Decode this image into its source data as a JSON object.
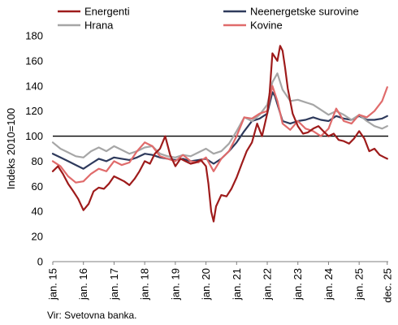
{
  "chart_data": {
    "type": "line",
    "ylabel": "Indeks 2010=100",
    "xlabel": "",
    "source": "Vir: Svetovna banka.",
    "ylim": [
      0,
      180
    ],
    "yticks": [
      0,
      20,
      40,
      60,
      80,
      100,
      120,
      140,
      160,
      180
    ],
    "xlim": [
      2015.0,
      2025.95
    ],
    "xticks": [
      {
        "x": 2015,
        "label": "jan. 15"
      },
      {
        "x": 2016,
        "label": "jan. 16"
      },
      {
        "x": 2017,
        "label": "jan. 17"
      },
      {
        "x": 2018,
        "label": "jan. 18"
      },
      {
        "x": 2019,
        "label": "jan. 19"
      },
      {
        "x": 2020,
        "label": "jan. 20"
      },
      {
        "x": 2021,
        "label": "jan. 21"
      },
      {
        "x": 2022,
        "label": "jan. 22"
      },
      {
        "x": 2023,
        "label": "jan. 23"
      },
      {
        "x": 2024,
        "label": "jan. 24"
      },
      {
        "x": 2025,
        "label": "jan. 25"
      },
      {
        "x": 2025.917,
        "label": "dec. 25"
      }
    ],
    "reference_line": 100,
    "grid": "none",
    "legend": "top",
    "series": [
      {
        "name": "Neenergetske surovine",
        "color": "#2e3a5c",
        "x": [
          2015.0,
          2015.25,
          2015.5,
          2015.75,
          2016.0,
          2016.25,
          2016.5,
          2016.75,
          2017.0,
          2017.25,
          2017.5,
          2017.75,
          2018.0,
          2018.25,
          2018.5,
          2018.75,
          2019.0,
          2019.25,
          2019.5,
          2019.75,
          2020.0,
          2020.25,
          2020.5,
          2020.75,
          2021.0,
          2021.25,
          2021.5,
          2021.75,
          2022.0,
          2022.17,
          2022.25,
          2022.5,
          2022.75,
          2023.0,
          2023.25,
          2023.5,
          2023.75,
          2024.0,
          2024.25,
          2024.5,
          2024.75,
          2025.0,
          2025.25,
          2025.5,
          2025.75,
          2025.917
        ],
        "values": [
          86,
          83,
          80,
          77,
          74,
          78,
          82,
          80,
          83,
          82,
          81,
          83,
          86,
          85,
          83,
          82,
          81,
          82,
          80,
          81,
          82,
          78,
          82,
          88,
          95,
          104,
          112,
          114,
          118,
          135,
          132,
          112,
          110,
          112,
          113,
          115,
          113,
          112,
          116,
          114,
          113,
          116,
          113,
          113,
          114,
          116
        ]
      },
      {
        "name": "Hrana",
        "color": "#a6a6a6",
        "x": [
          2015.0,
          2015.25,
          2015.5,
          2015.75,
          2016.0,
          2016.25,
          2016.5,
          2016.75,
          2017.0,
          2017.25,
          2017.5,
          2017.75,
          2018.0,
          2018.25,
          2018.5,
          2018.75,
          2019.0,
          2019.25,
          2019.5,
          2019.75,
          2020.0,
          2020.25,
          2020.5,
          2020.75,
          2021.0,
          2021.25,
          2021.5,
          2021.75,
          2022.0,
          2022.17,
          2022.33,
          2022.5,
          2022.75,
          2023.0,
          2023.25,
          2023.5,
          2023.75,
          2024.0,
          2024.25,
          2024.5,
          2024.75,
          2025.0,
          2025.25,
          2025.5,
          2025.75,
          2025.917
        ],
        "values": [
          95,
          90,
          87,
          84,
          83,
          88,
          91,
          88,
          92,
          89,
          86,
          88,
          91,
          92,
          86,
          84,
          83,
          85,
          84,
          87,
          90,
          86,
          88,
          94,
          104,
          115,
          112,
          117,
          125,
          143,
          150,
          137,
          128,
          129,
          127,
          125,
          121,
          117,
          120,
          117,
          113,
          117,
          112,
          108,
          106,
          108
        ]
      },
      {
        "name": "Kovine",
        "color": "#e06b6b",
        "x": [
          2015.0,
          2015.25,
          2015.5,
          2015.75,
          2016.0,
          2016.25,
          2016.5,
          2016.75,
          2017.0,
          2017.25,
          2017.5,
          2017.75,
          2018.0,
          2018.25,
          2018.5,
          2018.75,
          2019.0,
          2019.25,
          2019.5,
          2019.75,
          2020.0,
          2020.25,
          2020.5,
          2020.75,
          2021.0,
          2021.25,
          2021.5,
          2021.75,
          2022.0,
          2022.17,
          2022.33,
          2022.5,
          2022.75,
          2023.0,
          2023.25,
          2023.5,
          2023.75,
          2024.0,
          2024.25,
          2024.5,
          2024.75,
          2025.0,
          2025.25,
          2025.5,
          2025.75,
          2025.917
        ],
        "values": [
          80,
          76,
          68,
          63,
          64,
          70,
          74,
          72,
          80,
          77,
          79,
          88,
          95,
          92,
          84,
          82,
          80,
          85,
          80,
          79,
          83,
          72,
          82,
          88,
          100,
          115,
          114,
          118,
          120,
          140,
          128,
          110,
          105,
          112,
          106,
          104,
          100,
          106,
          122,
          112,
          110,
          117,
          115,
          120,
          128,
          139
        ]
      },
      {
        "name": "Energenti",
        "color": "#9e1b1b",
        "x": [
          2015.0,
          2015.17,
          2015.33,
          2015.5,
          2015.67,
          2015.83,
          2016.0,
          2016.17,
          2016.33,
          2016.5,
          2016.67,
          2016.83,
          2017.0,
          2017.17,
          2017.33,
          2017.5,
          2017.67,
          2017.83,
          2018.0,
          2018.17,
          2018.33,
          2018.5,
          2018.67,
          2018.83,
          2019.0,
          2019.17,
          2019.33,
          2019.5,
          2019.67,
          2019.83,
          2020.0,
          2020.08,
          2020.17,
          2020.25,
          2020.33,
          2020.5,
          2020.67,
          2020.83,
          2021.0,
          2021.17,
          2021.33,
          2021.5,
          2021.67,
          2021.83,
          2022.0,
          2022.08,
          2022.17,
          2022.33,
          2022.42,
          2022.5,
          2022.58,
          2022.67,
          2022.83,
          2023.0,
          2023.17,
          2023.33,
          2023.5,
          2023.67,
          2023.83,
          2024.0,
          2024.17,
          2024.33,
          2024.5,
          2024.67,
          2024.83,
          2025.0,
          2025.17,
          2025.33,
          2025.5,
          2025.67,
          2025.83,
          2025.917
        ],
        "values": [
          72,
          76,
          70,
          62,
          56,
          50,
          41,
          46,
          56,
          59,
          58,
          62,
          68,
          66,
          64,
          61,
          66,
          72,
          80,
          78,
          86,
          90,
          100,
          85,
          76,
          82,
          80,
          78,
          79,
          81,
          76,
          62,
          40,
          32,
          44,
          53,
          52,
          58,
          67,
          78,
          88,
          95,
          110,
          100,
          118,
          135,
          166,
          160,
          172,
          168,
          155,
          138,
          118,
          108,
          102,
          103,
          106,
          108,
          104,
          100,
          102,
          97,
          96,
          94,
          98,
          104,
          98,
          88,
          90,
          85,
          83,
          82
        ]
      }
    ]
  }
}
